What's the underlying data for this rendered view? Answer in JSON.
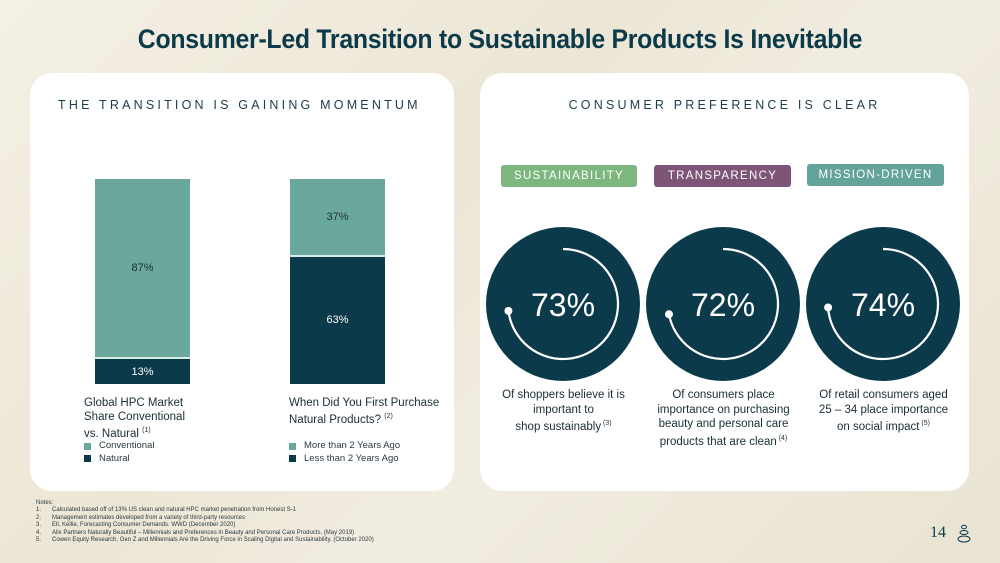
{
  "title": "Consumer-Led Transition to Sustainable Products Is Inevitable",
  "colors": {
    "dark_teal": "#0b3a4a",
    "light_teal": "#6aa89d",
    "sustainability": "#7db77f",
    "transparency": "#7f5577",
    "mission_driven": "#64a39a"
  },
  "left_panel": {
    "heading": "THE TRANSITION IS GAINING MOMENTUM"
  },
  "right_panel": {
    "heading": "CONSUMER PREFERENCE IS CLEAR",
    "metrics": [
      {
        "tag": "SUSTAINABILITY",
        "value_label": "73%",
        "value": 73,
        "desc": [
          "Of shoppers believe it is",
          "important to",
          "shop sustainably"
        ],
        "note": "(3)"
      },
      {
        "tag": "TRANSPARENCY",
        "value_label": "72%",
        "value": 72,
        "desc": [
          "Of consumers place",
          "importance on purchasing",
          "beauty and personal care",
          "products that are clean"
        ],
        "note": "(4)"
      },
      {
        "tag": "MISSION-DRIVEN",
        "value_label": "74%",
        "value": 74,
        "desc": [
          "Of retail consumers aged",
          "25 – 34 place importance",
          "on social impact"
        ],
        "note": "(5)"
      }
    ]
  },
  "chart_data": [
    {
      "type": "bar",
      "stacked": true,
      "title": "Global HPC Market Share Conventional vs. Natural",
      "title_lines": [
        "Global HPC Market",
        "Share Conventional",
        "vs. Natural"
      ],
      "note": "(1)",
      "categories": [
        "Global HPC Market Share"
      ],
      "series": [
        {
          "name": "Natural",
          "values": [
            13
          ],
          "label": "13%"
        },
        {
          "name": "Conventional",
          "values": [
            87
          ],
          "label": "87%"
        }
      ],
      "legend": [
        "Conventional",
        "Natural"
      ],
      "ylim": [
        0,
        100
      ]
    },
    {
      "type": "bar",
      "stacked": true,
      "title": "When Did You First Purchase Natural Products?",
      "title_lines": [
        "When Did You First Purchase",
        "Natural Products?"
      ],
      "note": "(2)",
      "categories": [
        "First Purchase"
      ],
      "series": [
        {
          "name": "Less than 2 Years Ago",
          "values": [
            63
          ],
          "label": "63%"
        },
        {
          "name": "More than 2 Years Ago",
          "values": [
            37
          ],
          "label": "37%"
        }
      ],
      "legend": [
        "More than 2 Years Ago",
        "Less than 2 Years Ago"
      ],
      "ylim": [
        0,
        100
      ]
    }
  ],
  "notes": {
    "heading": "Notes:",
    "items": [
      {
        "n": "1.",
        "text": "Calculated based off of 13% US clean and natural HPC market penetration from Honest S-1"
      },
      {
        "n": "2.",
        "text": "Management estimates developed from a variety of third-party resources"
      },
      {
        "n": "3.",
        "text": "Ell, Kellie, Forecasting Consumer Demands. WWD (December 2020)"
      },
      {
        "n": "4.",
        "text": "Alix Partners Naturally Beautiful – Millennials and Preferences in Beauty and Personal Care Products. (May 2019)"
      },
      {
        "n": "5.",
        "text": "Cowen Equity Research, Gen Z and Millennials Are the Driving Force in Scaling Digital and Sustainability. (October 2020)"
      }
    ]
  },
  "page_number": "14"
}
